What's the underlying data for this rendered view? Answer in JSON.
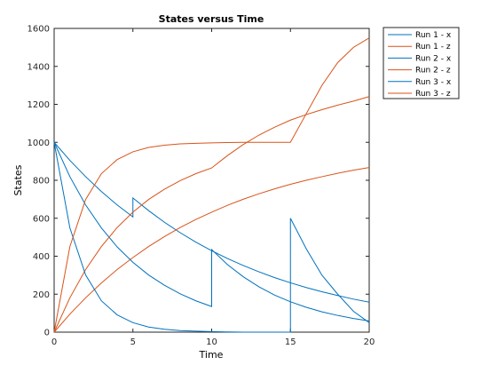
{
  "chart_data": {
    "type": "line",
    "title": "States versus Time",
    "xlabel": "Time",
    "ylabel": "States",
    "xlim": [
      0,
      20
    ],
    "ylim": [
      0,
      1600
    ],
    "xticks": [
      0,
      5,
      10,
      15,
      20
    ],
    "yticks": [
      0,
      200,
      400,
      600,
      800,
      1000,
      1200,
      1400,
      1600
    ],
    "grid": false,
    "legend_position": "outside-top-right",
    "colors": {
      "x": "#0072BD",
      "z": "#D95319"
    },
    "series": [
      {
        "name": "Run 1 - x",
        "color": "#0072BD",
        "points": [
          [
            0,
            1000
          ],
          [
            1,
            905
          ],
          [
            2,
            819
          ],
          [
            3,
            741
          ],
          [
            4,
            670
          ],
          [
            5,
            607
          ],
          [
            5,
            707
          ],
          [
            6,
            640
          ],
          [
            7,
            579
          ],
          [
            8,
            524
          ],
          [
            9,
            474
          ],
          [
            10,
            429
          ],
          [
            11,
            388
          ],
          [
            12,
            351
          ],
          [
            13,
            318
          ],
          [
            14,
            287
          ],
          [
            15,
            260
          ],
          [
            16,
            235
          ],
          [
            17,
            213
          ],
          [
            18,
            193
          ],
          [
            19,
            174
          ],
          [
            20,
            158
          ]
        ]
      },
      {
        "name": "Run 1 - z",
        "color": "#D95319",
        "points": [
          [
            0,
            0
          ],
          [
            1,
            95
          ],
          [
            2,
            181
          ],
          [
            3,
            259
          ],
          [
            4,
            330
          ],
          [
            5,
            393
          ],
          [
            6,
            451
          ],
          [
            7,
            503
          ],
          [
            8,
            551
          ],
          [
            9,
            594
          ],
          [
            10,
            632
          ],
          [
            11,
            668
          ],
          [
            12,
            700
          ],
          [
            13,
            729
          ],
          [
            14,
            755
          ],
          [
            15,
            779
          ],
          [
            16,
            800
          ],
          [
            17,
            819
          ],
          [
            18,
            837
          ],
          [
            19,
            853
          ],
          [
            20,
            867
          ]
        ]
      },
      {
        "name": "Run 2 - x",
        "color": "#0072BD",
        "points": [
          [
            0,
            1000
          ],
          [
            1,
            819
          ],
          [
            2,
            670
          ],
          [
            3,
            549
          ],
          [
            4,
            449
          ],
          [
            5,
            368
          ],
          [
            6,
            301
          ],
          [
            7,
            247
          ],
          [
            8,
            202
          ],
          [
            9,
            165
          ],
          [
            10,
            135
          ],
          [
            10,
            435
          ],
          [
            11,
            356
          ],
          [
            12,
            292
          ],
          [
            13,
            239
          ],
          [
            14,
            195
          ],
          [
            15,
            160
          ],
          [
            16,
            131
          ],
          [
            17,
            107
          ],
          [
            18,
            88
          ],
          [
            19,
            72
          ],
          [
            20,
            59
          ]
        ]
      },
      {
        "name": "Run 2 - z",
        "color": "#D95319",
        "points": [
          [
            0,
            0
          ],
          [
            1,
            181
          ],
          [
            2,
            330
          ],
          [
            3,
            451
          ],
          [
            4,
            551
          ],
          [
            5,
            632
          ],
          [
            6,
            699
          ],
          [
            7,
            753
          ],
          [
            8,
            798
          ],
          [
            9,
            835
          ],
          [
            10,
            865
          ],
          [
            11,
            930
          ],
          [
            12,
            988
          ],
          [
            13,
            1038
          ],
          [
            14,
            1080
          ],
          [
            15,
            1117
          ],
          [
            16,
            1146
          ],
          [
            17,
            1172
          ],
          [
            18,
            1196
          ],
          [
            19,
            1217
          ],
          [
            20,
            1241
          ]
        ]
      },
      {
        "name": "Run 3 - x",
        "color": "#0072BD",
        "points": [
          [
            0,
            1000
          ],
          [
            1,
            549
          ],
          [
            2,
            301
          ],
          [
            3,
            165
          ],
          [
            4,
            91
          ],
          [
            5,
            50
          ],
          [
            6,
            27
          ],
          [
            7,
            15
          ],
          [
            8,
            8
          ],
          [
            9,
            5
          ],
          [
            10,
            3
          ],
          [
            11,
            1
          ],
          [
            12,
            0
          ],
          [
            13,
            0
          ],
          [
            14,
            0
          ],
          [
            15,
            0
          ],
          [
            15,
            600
          ],
          [
            16,
            440
          ],
          [
            17,
            300
          ],
          [
            18,
            200
          ],
          [
            19,
            110
          ],
          [
            20,
            50
          ]
        ]
      },
      {
        "name": "Run 3 - z",
        "color": "#D95319",
        "points": [
          [
            0,
            0
          ],
          [
            1,
            451
          ],
          [
            2,
            699
          ],
          [
            3,
            835
          ],
          [
            4,
            909
          ],
          [
            5,
            950
          ],
          [
            6,
            973
          ],
          [
            7,
            985
          ],
          [
            8,
            992
          ],
          [
            9,
            995
          ],
          [
            10,
            997
          ],
          [
            11,
            999
          ],
          [
            12,
            1000
          ],
          [
            13,
            1000
          ],
          [
            14,
            1000
          ],
          [
            15,
            1000
          ],
          [
            16,
            1150
          ],
          [
            17,
            1300
          ],
          [
            18,
            1420
          ],
          [
            19,
            1500
          ],
          [
            20,
            1550
          ]
        ]
      }
    ]
  }
}
